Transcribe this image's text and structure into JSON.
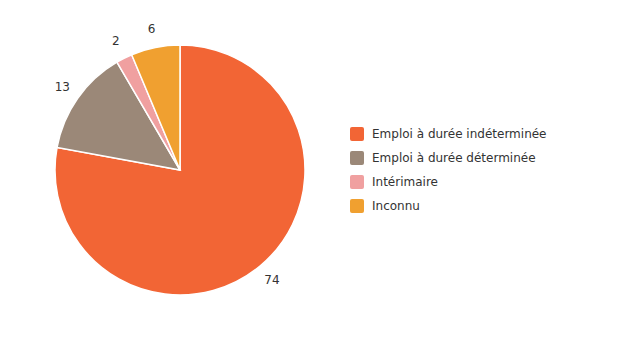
{
  "chart_data": {
    "type": "pie",
    "categories": [
      "Emploi à durée indéterminée",
      "Emploi à durée déterminée",
      "Intérimaire",
      "Inconnu"
    ],
    "values": [
      74,
      13,
      2,
      6
    ],
    "colors": [
      "#f26535",
      "#9b8878",
      "#f0a0a0",
      "#f0a030"
    ],
    "data_labels": true,
    "legend": "right"
  }
}
